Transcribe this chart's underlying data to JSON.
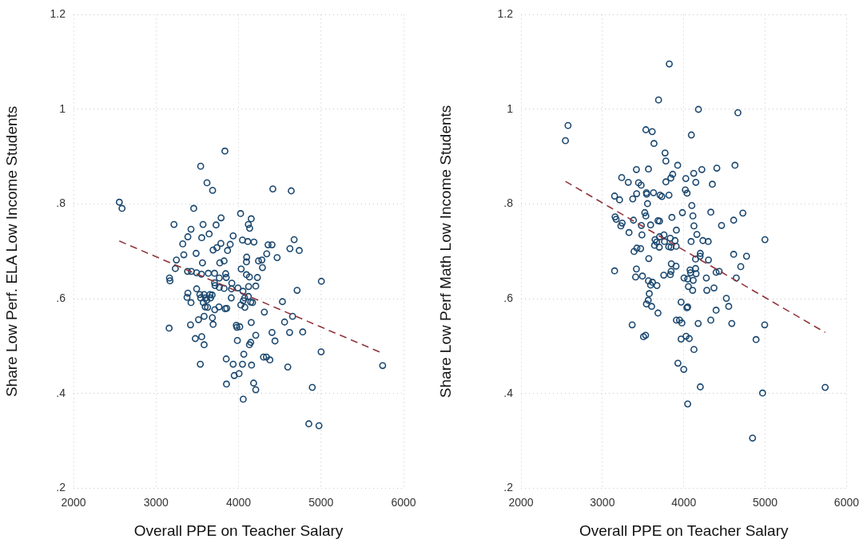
{
  "chart_data": [
    {
      "type": "scatter",
      "xlabel": "Overall PPE on Teacher Salary",
      "ylabel": "Share Low Perf. ELA Low Income Students",
      "xlim": [
        2000,
        6000
      ],
      "ylim": [
        0.2,
        1.2
      ],
      "xticks": [
        2000,
        3000,
        4000,
        5000,
        6000
      ],
      "yticks": [
        {
          "value": 0.2,
          "label": ".2"
        },
        {
          "value": 0.4,
          "label": ".4"
        },
        {
          "value": 0.6,
          "label": ".6"
        },
        {
          "value": 0.8,
          "label": ".8"
        },
        {
          "value": 1,
          "label": "1"
        },
        {
          "value": 1.2,
          "label": "1.2"
        }
      ],
      "grid": true,
      "series": [
        {
          "marker": "circle",
          "color": "#1a476f",
          "x": [
            3835,
            3541,
            3618,
            3686,
            4416,
            4639,
            2555,
            2588,
            3457,
            4025,
            4154,
            4119,
            4135,
            3218,
            3570,
            3728,
            3789,
            3424,
            3644,
            3386,
            3554,
            3935,
            4674,
            3324,
            3786,
            3899,
            4048,
            4112,
            4187,
            4358,
            4406,
            4623,
            4736,
            3738,
            3692,
            3867,
            3337,
            3486,
            4342,
            3247,
            3234,
            3563,
            3773,
            3825,
            4099,
            4096,
            4242,
            4283,
            4468,
            4290,
            3382,
            3428,
            3492,
            3550,
            3634,
            3709,
            3767,
            3844,
            3851,
            4032,
            4096,
            4132,
            4229,
            3163,
            3169,
            3709,
            3715,
            3767,
            3825,
            3919,
            3915,
            3993,
            4054,
            4122,
            4209,
            3492,
            3386,
            3376,
            3531,
            3583,
            3654,
            3680,
            3541,
            3602,
            3660,
            3912,
            4119,
            4074,
            5004,
            4710,
            3424,
            3573,
            3615,
            3596,
            3625,
            3712,
            3763,
            3838,
            3857,
            4028,
            4057,
            4077,
            4148,
            4170,
            4532,
            4313,
            3515,
            3583,
            3683,
            3692,
            3418,
            3159,
            3973,
            3980,
            4015,
            4154,
            4558,
            4655,
            4406,
            4619,
            4778,
            4209,
            3476,
            3554,
            3583,
            3986,
            4148,
            4132,
            4442,
            5001,
            4064,
            3537,
            3851,
            3935,
            4048,
            4158,
            4303,
            4338,
            4380,
            4597,
            5747,
            3948,
            4006,
            3854,
            4183,
            4209,
            4057,
            4894,
            4852,
            4975
          ],
          "values": [
            0.912,
            0.88,
            0.845,
            0.829,
            0.832,
            0.828,
            0.804,
            0.791,
            0.791,
            0.78,
            0.769,
            0.757,
            0.749,
            0.757,
            0.757,
            0.756,
            0.771,
            0.747,
            0.737,
            0.731,
            0.729,
            0.733,
            0.725,
            0.716,
            0.717,
            0.715,
            0.724,
            0.721,
            0.72,
            0.714,
            0.714,
            0.706,
            0.702,
            0.708,
            0.703,
            0.702,
            0.693,
            0.696,
            0.695,
            0.682,
            0.664,
            0.676,
            0.676,
            0.68,
            0.688,
            0.678,
            0.68,
            0.682,
            0.687,
            0.666,
            0.658,
            0.658,
            0.655,
            0.652,
            0.654,
            0.654,
            0.644,
            0.653,
            0.645,
            0.663,
            0.651,
            0.646,
            0.645,
            0.644,
            0.638,
            0.634,
            0.628,
            0.624,
            0.622,
            0.633,
            0.621,
            0.623,
            0.616,
            0.626,
            0.627,
            0.621,
            0.612,
            0.603,
            0.609,
            0.609,
            0.609,
            0.608,
            0.602,
            0.602,
            0.602,
            0.602,
            0.605,
            0.602,
            0.637,
            0.618,
            0.592,
            0.592,
            0.597,
            0.583,
            0.582,
            0.577,
            0.583,
            0.579,
            0.58,
            0.587,
            0.596,
            0.582,
            0.593,
            0.592,
            0.594,
            0.572,
            0.556,
            0.563,
            0.56,
            0.546,
            0.545,
            0.538,
            0.544,
            0.54,
            0.541,
            0.55,
            0.551,
            0.563,
            0.529,
            0.529,
            0.53,
            0.523,
            0.516,
            0.52,
            0.503,
            0.512,
            0.508,
            0.503,
            0.511,
            0.488,
            0.483,
            0.462,
            0.473,
            0.462,
            0.462,
            0.46,
            0.477,
            0.477,
            0.471,
            0.456,
            0.459,
            0.438,
            0.442,
            0.42,
            0.422,
            0.408,
            0.388,
            0.413,
            0.336,
            0.332
          ]
        },
        {
          "type": "line",
          "color": "#90353b",
          "line_style": "dashed",
          "x": [
            2555,
            5747
          ],
          "values": [
            0.722,
            0.485
          ]
        }
      ]
    },
    {
      "type": "scatter",
      "xlabel": "Overall PPE on Teacher Salary",
      "ylabel": "Share Low Perf Math Low Income Students",
      "xlim": [
        2000,
        6000
      ],
      "ylim": [
        0.2,
        1.2
      ],
      "xticks": [
        2000,
        3000,
        4000,
        5000,
        6000
      ],
      "yticks": [
        {
          "value": 0.2,
          "label": ".2"
        },
        {
          "value": 0.4,
          "label": ".4"
        },
        {
          "value": 0.6,
          "label": ".6"
        },
        {
          "value": 0.8,
          "label": ".8"
        },
        {
          "value": 1,
          "label": "1"
        },
        {
          "value": 1.2,
          "label": "1.2"
        }
      ],
      "grid": true,
      "series": [
        {
          "marker": "circle",
          "color": "#1a476f",
          "x": [
            3822,
            3690,
            4180,
            4665,
            2578,
            2546,
            3534,
            3612,
            3634,
            4093,
            3770,
            3780,
            3925,
            3418,
            3566,
            4222,
            4406,
            4629,
            3237,
            3318,
            3444,
            3476,
            3864,
            3841,
            3780,
            4025,
            4122,
            4148,
            4351,
            3150,
            3211,
            3373,
            3421,
            3541,
            3544,
            3628,
            3709,
            3731,
            3818,
            4019,
            4041,
            3554,
            4099,
            3521,
            3534,
            3983,
            4112,
            4332,
            4726,
            3156,
            3169,
            3382,
            3683,
            3702,
            3854,
            4613,
            3243,
            3227,
            3479,
            3592,
            4125,
            4464,
            3327,
            3486,
            3909,
            4161,
            3647,
            3702,
            3757,
            3834,
            3893,
            3667,
            3763,
            4090,
            4235,
            4300,
            4997,
            3641,
            3699,
            3815,
            3844,
            3906,
            3389,
            3424,
            3470,
            4203,
            4200,
            4613,
            4771,
            3570,
            4145,
            4303,
            4700,
            3150,
            3418,
            3847,
            3905,
            4077,
            4145,
            4083,
            4151,
            4397,
            4435,
            3408,
            3492,
            3754,
            3844,
            3835,
            4003,
            4048,
            4116,
            4277,
            4645,
            3566,
            3615,
            3592,
            3670,
            4057,
            4109,
            4283,
            4371,
            3576,
            3563,
            3541,
            3605,
            3683,
            3967,
            4038,
            4048,
            4523,
            4552,
            4397,
            3366,
            3909,
            3948,
            3977,
            4177,
            4332,
            4590,
            4994,
            3505,
            3531,
            3967,
            4028,
            4067,
            4888,
            4125,
            3928,
            4000,
            4203,
            5737,
            4968,
            4048,
            4845
          ],
          "values": [
            1.096,
            1.02,
            1.0,
            0.993,
            0.966,
            0.934,
            0.957,
            0.953,
            0.928,
            0.946,
            0.908,
            0.891,
            0.882,
            0.873,
            0.874,
            0.873,
            0.876,
            0.882,
            0.856,
            0.846,
            0.845,
            0.84,
            0.863,
            0.855,
            0.847,
            0.854,
            0.865,
            0.846,
            0.842,
            0.817,
            0.809,
            0.811,
            0.822,
            0.824,
            0.821,
            0.824,
            0.819,
            0.816,
            0.819,
            0.83,
            0.823,
            0.801,
            0.797,
            0.782,
            0.775,
            0.782,
            0.775,
            0.783,
            0.781,
            0.773,
            0.768,
            0.766,
            0.765,
            0.764,
            0.772,
            0.766,
            0.76,
            0.754,
            0.755,
            0.756,
            0.754,
            0.755,
            0.74,
            0.735,
            0.745,
            0.736,
            0.725,
            0.731,
            0.735,
            0.728,
            0.723,
            0.72,
            0.721,
            0.721,
            0.723,
            0.721,
            0.725,
            0.713,
            0.709,
            0.71,
            0.709,
            0.711,
            0.7,
            0.707,
            0.706,
            0.696,
            0.69,
            0.694,
            0.69,
            0.685,
            0.684,
            0.682,
            0.668,
            0.659,
            0.663,
            0.674,
            0.669,
            0.661,
            0.664,
            0.655,
            0.653,
            0.656,
            0.658,
            0.646,
            0.648,
            0.65,
            0.658,
            0.651,
            0.644,
            0.642,
            0.639,
            0.644,
            0.644,
            0.638,
            0.635,
            0.629,
            0.628,
            0.626,
            0.618,
            0.618,
            0.623,
            0.611,
            0.597,
            0.589,
            0.584,
            0.57,
            0.593,
            0.581,
            0.583,
            0.601,
            0.584,
            0.576,
            0.545,
            0.555,
            0.555,
            0.549,
            0.548,
            0.555,
            0.548,
            0.545,
            0.52,
            0.523,
            0.515,
            0.521,
            0.516,
            0.514,
            0.493,
            0.464,
            0.451,
            0.414,
            0.413,
            0.401,
            0.378,
            0.306
          ]
        },
        {
          "type": "line",
          "color": "#90353b",
          "line_style": "dashed",
          "x": [
            2546,
            5737
          ],
          "values": [
            0.848,
            0.529
          ]
        }
      ]
    }
  ]
}
